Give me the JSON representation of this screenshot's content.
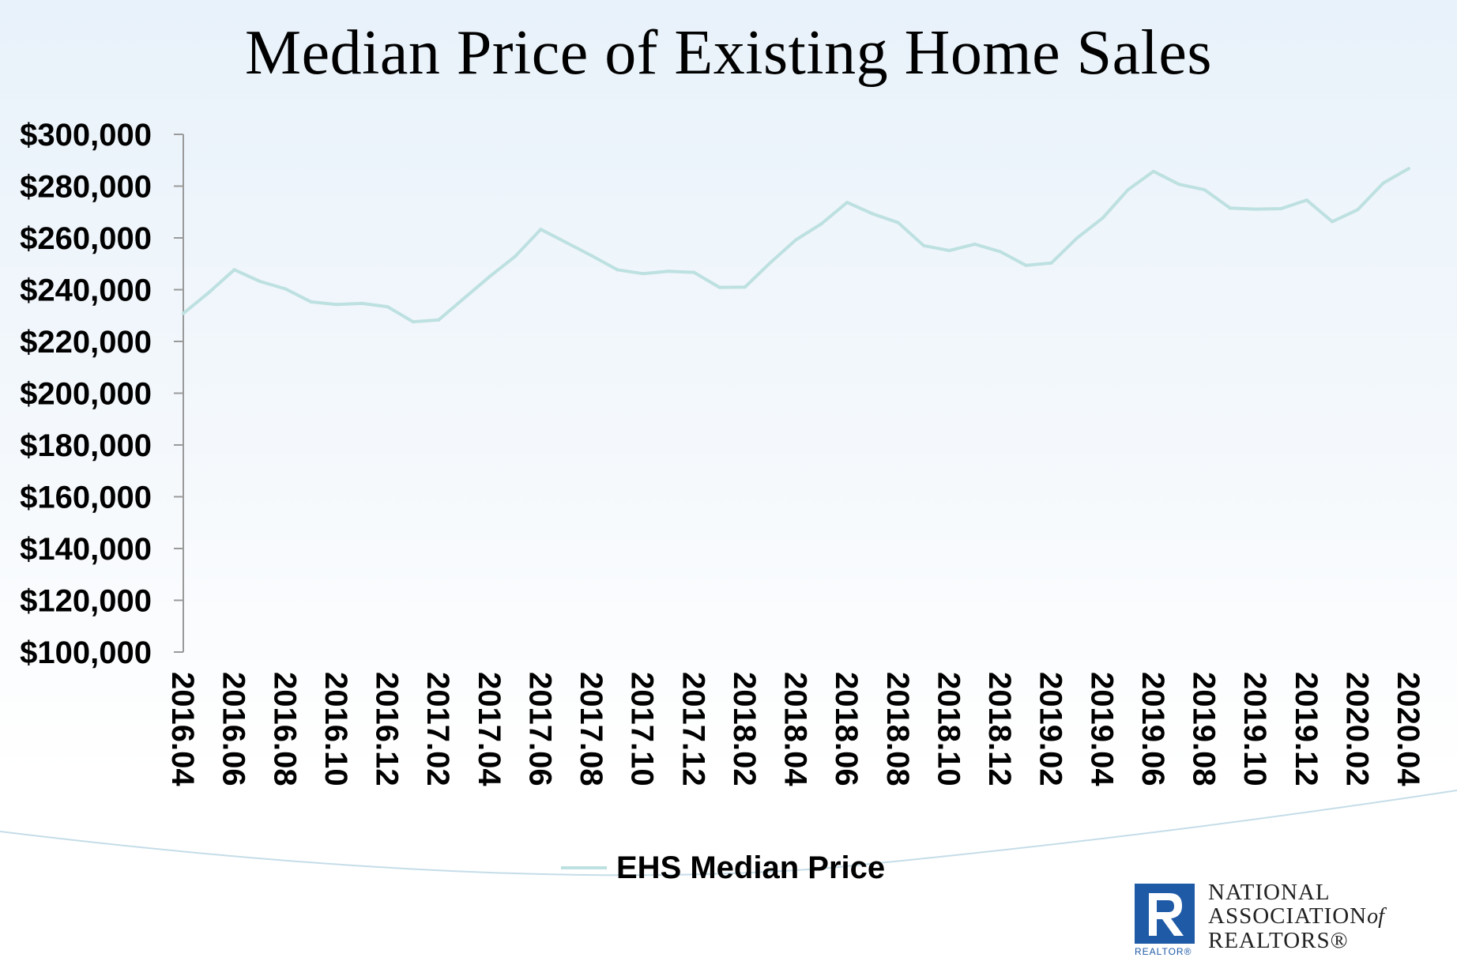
{
  "chart_data": {
    "type": "line",
    "title": "Median Price of Existing Home Sales",
    "xlabel": "",
    "ylabel": "",
    "ylim": [
      100000,
      300000
    ],
    "yticks": [
      "$100,000",
      "$120,000",
      "$140,000",
      "$160,000",
      "$180,000",
      "$200,000",
      "$220,000",
      "$240,000",
      "$260,000",
      "$280,000",
      "$300,000"
    ],
    "xtick_labels": [
      "2016.04",
      "2016.06",
      "2016.08",
      "2016.10",
      "2016.12",
      "2017.02",
      "2017.04",
      "2017.06",
      "2017.08",
      "2017.10",
      "2017.12",
      "2018.02",
      "2018.04",
      "2018.06",
      "2018.08",
      "2018.10",
      "2018.12",
      "2019.02",
      "2019.04",
      "2019.06",
      "2019.08",
      "2019.10",
      "2019.12",
      "2020.02",
      "2020.04"
    ],
    "x": [
      "2016.04",
      "2016.05",
      "2016.06",
      "2016.07",
      "2016.08",
      "2016.09",
      "2016.10",
      "2016.11",
      "2016.12",
      "2017.01",
      "2017.02",
      "2017.03",
      "2017.04",
      "2017.05",
      "2017.06",
      "2017.07",
      "2017.08",
      "2017.09",
      "2017.10",
      "2017.11",
      "2017.12",
      "2018.01",
      "2018.02",
      "2018.03",
      "2018.04",
      "2018.05",
      "2018.06",
      "2018.07",
      "2018.08",
      "2018.09",
      "2018.10",
      "2018.11",
      "2018.12",
      "2019.01",
      "2019.02",
      "2019.03",
      "2019.04",
      "2019.05",
      "2019.06",
      "2019.07",
      "2019.08",
      "2019.09",
      "2019.10",
      "2019.11",
      "2019.12",
      "2020.01",
      "2020.02",
      "2020.03",
      "2020.04"
    ],
    "series": [
      {
        "name": "EHS Median Price",
        "color": "#bde0e0",
        "values": [
          230800,
          238900,
          247700,
          243200,
          240300,
          235300,
          234300,
          234700,
          233400,
          227600,
          228300,
          236700,
          245100,
          252900,
          263300,
          258200,
          253100,
          247700,
          246200,
          247100,
          246700,
          240900,
          241000,
          250500,
          259300,
          265500,
          273700,
          269300,
          265900,
          257000,
          255100,
          257600,
          254700,
          249400,
          250300,
          259900,
          267600,
          278600,
          285700,
          280700,
          278600,
          271500,
          271100,
          271300,
          274600,
          266300,
          270900,
          281200,
          286800
        ]
      }
    ],
    "legend": {
      "position": "bottom",
      "label": "EHS Median Price"
    },
    "grid": false
  },
  "branding": {
    "logo_line1": "NATIONAL",
    "logo_line2": "ASSOCIATION",
    "logo_of": "of",
    "logo_line3": "REALTORS®",
    "logo_tag": "REALTOR®"
  }
}
